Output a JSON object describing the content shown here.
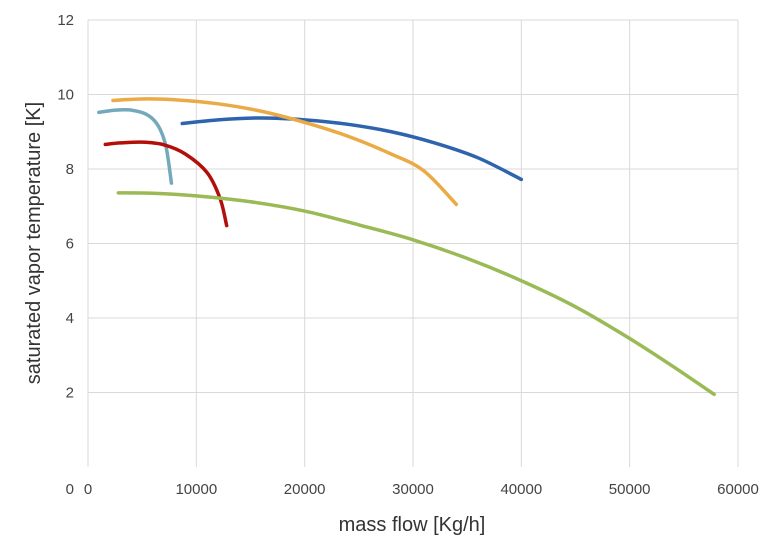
{
  "chart_data": {
    "type": "line",
    "title": "",
    "xlabel": "mass flow [Kg/h]",
    "ylabel": "saturated vapor temperature [K]",
    "xlim": [
      0,
      60000
    ],
    "ylim": [
      0,
      12
    ],
    "xticks": [
      0,
      10000,
      20000,
      30000,
      40000,
      50000,
      60000
    ],
    "yticks": [
      2,
      4,
      6,
      8,
      10,
      12
    ],
    "grid": true,
    "legend": "none",
    "series": [
      {
        "color": "#2e63ad",
        "points": [
          [
            8700,
            9.22
          ],
          [
            12000,
            9.32
          ],
          [
            16000,
            9.37
          ],
          [
            20000,
            9.32
          ],
          [
            24000,
            9.2
          ],
          [
            28000,
            9.0
          ],
          [
            32000,
            8.7
          ],
          [
            36000,
            8.3
          ],
          [
            40000,
            7.72
          ]
        ]
      },
      {
        "color": "#eaaa45",
        "points": [
          [
            2300,
            9.84
          ],
          [
            5000,
            9.88
          ],
          [
            8000,
            9.86
          ],
          [
            12000,
            9.75
          ],
          [
            16000,
            9.55
          ],
          [
            20000,
            9.25
          ],
          [
            24000,
            8.88
          ],
          [
            28000,
            8.4
          ],
          [
            31000,
            7.95
          ],
          [
            34000,
            7.05
          ]
        ]
      },
      {
        "color": "#74a9bb",
        "points": [
          [
            1000,
            9.52
          ],
          [
            2500,
            9.58
          ],
          [
            4000,
            9.58
          ],
          [
            5500,
            9.45
          ],
          [
            6500,
            9.15
          ],
          [
            7200,
            8.6
          ],
          [
            7700,
            7.62
          ]
        ]
      },
      {
        "color": "#b20f0a",
        "points": [
          [
            1600,
            8.66
          ],
          [
            3000,
            8.7
          ],
          [
            5000,
            8.72
          ],
          [
            7000,
            8.65
          ],
          [
            9000,
            8.4
          ],
          [
            11000,
            7.9
          ],
          [
            12200,
            7.2
          ],
          [
            12800,
            6.48
          ]
        ]
      },
      {
        "color": "#9aba55",
        "points": [
          [
            2800,
            7.36
          ],
          [
            6000,
            7.35
          ],
          [
            10000,
            7.28
          ],
          [
            15000,
            7.12
          ],
          [
            20000,
            6.87
          ],
          [
            25000,
            6.5
          ],
          [
            30000,
            6.1
          ],
          [
            35000,
            5.6
          ],
          [
            40000,
            5.0
          ],
          [
            45000,
            4.3
          ],
          [
            50000,
            3.45
          ],
          [
            54000,
            2.7
          ],
          [
            57800,
            1.95
          ]
        ]
      }
    ]
  }
}
